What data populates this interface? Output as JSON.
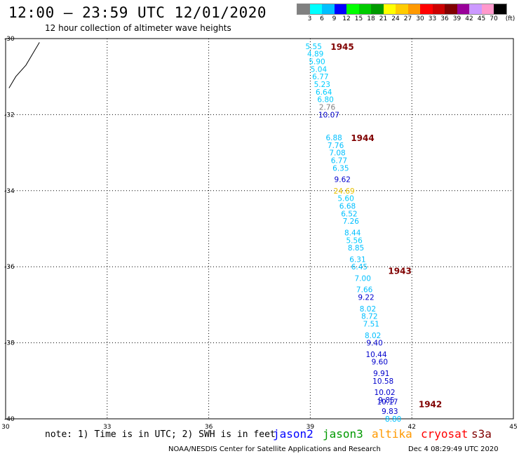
{
  "header": {
    "title": "12:00 – 23:59 UTC 12/01/2020",
    "subtitle": "12 hour collection of altimeter wave heights"
  },
  "scale": {
    "unit": "(ft)",
    "colors": [
      "#808080",
      "#00ffff",
      "#00bfff",
      "#0000ff",
      "#00ff00",
      "#00cc00",
      "#009900",
      "#ffff00",
      "#ffcc00",
      "#ff9900",
      "#ff0000",
      "#cc0000",
      "#800000",
      "#990099",
      "#cc99ff",
      "#ff99cc",
      "#000000"
    ],
    "labels": [
      "3",
      "6",
      "9",
      "12",
      "15",
      "18",
      "21",
      "24",
      "27",
      "30",
      "33",
      "36",
      "39",
      "42",
      "45",
      "70"
    ]
  },
  "map": {
    "lon_range": [
      30,
      45
    ],
    "lat_range": [
      -40,
      -30
    ],
    "x_ticks": [
      "30",
      "33",
      "36",
      "39",
      "42",
      "45"
    ],
    "y_ticks": [
      "-30",
      "-32",
      "-34",
      "-36",
      "-38",
      "-40"
    ]
  },
  "chart_data": {
    "type": "scatter",
    "x_axis": "longitude",
    "y_axis": "latitude",
    "points": [
      {
        "lon": 39.1,
        "lat": -30.2,
        "value": "5.55",
        "color": "#00ccff"
      },
      {
        "lon": 39.15,
        "lat": -30.4,
        "value": "4.89",
        "color": "#00ccff"
      },
      {
        "lon": 39.2,
        "lat": -30.6,
        "value": "5.90",
        "color": "#00ccff"
      },
      {
        "lon": 39.25,
        "lat": -30.8,
        "value": "5.04",
        "color": "#00ccff"
      },
      {
        "lon": 39.3,
        "lat": -31.0,
        "value": "6.77",
        "color": "#00ccff"
      },
      {
        "lon": 39.35,
        "lat": -31.2,
        "value": "5.23",
        "color": "#00ccff"
      },
      {
        "lon": 39.4,
        "lat": -31.4,
        "value": "6.64",
        "color": "#00ccff"
      },
      {
        "lon": 39.45,
        "lat": -31.6,
        "value": "6.80",
        "color": "#00ccff"
      },
      {
        "lon": 39.5,
        "lat": -31.8,
        "value": "2.76",
        "color": "#808080"
      },
      {
        "lon": 39.55,
        "lat": -32.0,
        "value": "10.07",
        "color": "#0000cc"
      },
      {
        "lon": 39.7,
        "lat": -32.6,
        "value": "6.88",
        "color": "#00bfff"
      },
      {
        "lon": 39.75,
        "lat": -32.8,
        "value": "7.76",
        "color": "#00bfff"
      },
      {
        "lon": 39.8,
        "lat": -33.0,
        "value": "7.08",
        "color": "#00bfff"
      },
      {
        "lon": 39.85,
        "lat": -33.2,
        "value": "6.77",
        "color": "#00bfff"
      },
      {
        "lon": 39.9,
        "lat": -33.4,
        "value": "6.35",
        "color": "#00bfff"
      },
      {
        "lon": 39.95,
        "lat": -33.7,
        "value": "9.62",
        "color": "#0000cc"
      },
      {
        "lon": 40.0,
        "lat": -34.0,
        "value": "24.69",
        "color": "#e6c000"
      },
      {
        "lon": 40.05,
        "lat": -34.2,
        "value": "5.60",
        "color": "#00ccff"
      },
      {
        "lon": 40.1,
        "lat": -34.4,
        "value": "6.68",
        "color": "#00bfff"
      },
      {
        "lon": 40.15,
        "lat": -34.6,
        "value": "6.52",
        "color": "#00bfff"
      },
      {
        "lon": 40.2,
        "lat": -34.8,
        "value": "7.26",
        "color": "#00bfff"
      },
      {
        "lon": 40.25,
        "lat": -35.1,
        "value": "8.44",
        "color": "#00bfff"
      },
      {
        "lon": 40.3,
        "lat": -35.3,
        "value": "5.56",
        "color": "#00ccff"
      },
      {
        "lon": 40.35,
        "lat": -35.5,
        "value": "8.85",
        "color": "#00bfff"
      },
      {
        "lon": 40.4,
        "lat": -35.8,
        "value": "6.31",
        "color": "#00bfff"
      },
      {
        "lon": 40.45,
        "lat": -36.0,
        "value": "6.45",
        "color": "#00bfff"
      },
      {
        "lon": 40.55,
        "lat": -36.3,
        "value": "7.00",
        "color": "#00bfff"
      },
      {
        "lon": 40.6,
        "lat": -36.6,
        "value": "7.66",
        "color": "#00bfff"
      },
      {
        "lon": 40.65,
        "lat": -36.8,
        "value": "9.22",
        "color": "#0000cc"
      },
      {
        "lon": 40.7,
        "lat": -37.1,
        "value": "8.02",
        "color": "#00bfff"
      },
      {
        "lon": 40.75,
        "lat": -37.3,
        "value": "8.72",
        "color": "#00bfff"
      },
      {
        "lon": 40.8,
        "lat": -37.5,
        "value": "7.51",
        "color": "#00bfff"
      },
      {
        "lon": 40.85,
        "lat": -37.8,
        "value": "8.02",
        "color": "#00bfff"
      },
      {
        "lon": 40.9,
        "lat": -38.0,
        "value": "9.40",
        "color": "#0000cc"
      },
      {
        "lon": 40.95,
        "lat": -38.3,
        "value": "10.44",
        "color": "#0000cc"
      },
      {
        "lon": 41.05,
        "lat": -38.5,
        "value": "9.60",
        "color": "#0000cc"
      },
      {
        "lon": 41.1,
        "lat": -38.8,
        "value": "9.91",
        "color": "#0000cc"
      },
      {
        "lon": 41.15,
        "lat": -39.0,
        "value": "10.58",
        "color": "#0000cc"
      },
      {
        "lon": 41.2,
        "lat": -39.3,
        "value": "10.02",
        "color": "#0000cc"
      },
      {
        "lon": 41.25,
        "lat": -39.5,
        "value": "9.85",
        "color": "#0000cc"
      },
      {
        "lon": 41.28,
        "lat": -39.55,
        "value": "10.17",
        "color": "#0000cc"
      },
      {
        "lon": 41.35,
        "lat": -39.8,
        "value": "9.83",
        "color": "#0000cc"
      },
      {
        "lon": 41.45,
        "lat": -40.0,
        "value": "8.80",
        "color": "#00bfff"
      }
    ],
    "time_labels": [
      {
        "lon": 39.6,
        "lat": -30.2,
        "text": "1945"
      },
      {
        "lon": 40.2,
        "lat": -32.6,
        "text": "1944"
      },
      {
        "lon": 41.3,
        "lat": -36.1,
        "text": "1943"
      },
      {
        "lon": 42.2,
        "lat": -39.6,
        "text": "1942"
      }
    ],
    "coastline": [
      [
        30.1,
        -31.3
      ],
      [
        30.3,
        -31.0
      ],
      [
        30.6,
        -30.7
      ],
      [
        30.8,
        -30.4
      ],
      [
        31.0,
        -30.1
      ]
    ]
  },
  "footer": {
    "note": "note: 1) Time is in UTC; 2) SWH is in feet",
    "satellites": [
      {
        "name": "jason2",
        "color": "#0000ff"
      },
      {
        "name": "jason3",
        "color": "#009900"
      },
      {
        "name": "altika",
        "color": "#ff9900"
      },
      {
        "name": "cryosat",
        "color": "#ff0000"
      },
      {
        "name": "s3a",
        "color": "#800000"
      }
    ],
    "credit": "NOAA/NESDIS Center for Satellite Applications and Research",
    "timestamp": "Dec  4 08:29:49 UTC 2020"
  }
}
